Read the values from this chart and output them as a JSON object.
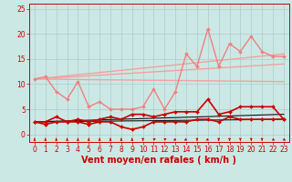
{
  "title": "",
  "xlabel": "Vent moyen/en rafales ( km/h )",
  "bg_color": "#cce8e4",
  "grid_color": "#aacccc",
  "xlim": [
    -0.5,
    23.5
  ],
  "ylim": [
    -1.5,
    26
  ],
  "xticks": [
    0,
    1,
    2,
    3,
    4,
    5,
    6,
    7,
    8,
    9,
    10,
    11,
    12,
    13,
    14,
    15,
    16,
    17,
    18,
    19,
    20,
    21,
    22,
    23
  ],
  "yticks": [
    0,
    5,
    10,
    15,
    20,
    25
  ],
  "series": [
    {
      "name": "rafales_zigzag",
      "x": [
        0,
        1,
        2,
        3,
        4,
        5,
        6,
        7,
        8,
        9,
        10,
        11,
        12,
        13,
        14,
        15,
        16,
        17,
        18,
        19,
        20,
        21,
        22,
        23
      ],
      "y": [
        11.0,
        11.5,
        8.5,
        7.0,
        10.5,
        5.5,
        6.5,
        5.0,
        5.0,
        5.0,
        5.5,
        9.0,
        5.0,
        8.5,
        16.0,
        13.5,
        21.0,
        13.5,
        18.0,
        16.5,
        19.5,
        16.5,
        15.5,
        15.5
      ],
      "color": "#f08080",
      "linewidth": 1.0,
      "marker": "D",
      "markersize": 2.0,
      "zorder": 4
    },
    {
      "name": "trend_top",
      "x": [
        0,
        23
      ],
      "y": [
        11.0,
        16.0
      ],
      "color": "#f4a0a0",
      "linewidth": 1.0,
      "marker": null,
      "zorder": 2
    },
    {
      "name": "trend_mid",
      "x": [
        0,
        23
      ],
      "y": [
        11.0,
        14.0
      ],
      "color": "#f4a0a0",
      "linewidth": 1.0,
      "marker": null,
      "zorder": 2
    },
    {
      "name": "trend_bot",
      "x": [
        0,
        23
      ],
      "y": [
        11.0,
        10.5
      ],
      "color": "#f4a0a0",
      "linewidth": 1.0,
      "marker": null,
      "zorder": 2
    },
    {
      "name": "moyen_upper",
      "x": [
        0,
        1,
        2,
        3,
        4,
        5,
        6,
        7,
        8,
        9,
        10,
        11,
        12,
        13,
        14,
        15,
        16,
        17,
        18,
        19,
        20,
        21,
        22,
        23
      ],
      "y": [
        2.5,
        2.5,
        3.5,
        2.5,
        3.0,
        2.5,
        3.0,
        3.5,
        3.0,
        4.0,
        4.0,
        3.5,
        4.0,
        4.5,
        4.5,
        4.5,
        7.0,
        4.0,
        4.5,
        5.5,
        5.5,
        5.5,
        5.5,
        3.0
      ],
      "color": "#cc0000",
      "linewidth": 1.2,
      "marker": "D",
      "markersize": 2.0,
      "zorder": 5
    },
    {
      "name": "moyen_lower",
      "x": [
        0,
        1,
        2,
        3,
        4,
        5,
        6,
        7,
        8,
        9,
        10,
        11,
        12,
        13,
        14,
        15,
        16,
        17,
        18,
        19,
        20,
        21,
        22,
        23
      ],
      "y": [
        2.5,
        2.0,
        2.5,
        2.5,
        2.5,
        2.0,
        2.5,
        2.5,
        1.5,
        1.0,
        1.5,
        2.5,
        2.5,
        2.5,
        2.5,
        3.0,
        3.0,
        2.5,
        3.5,
        3.0,
        3.0,
        3.0,
        3.0,
        3.0
      ],
      "color": "#cc0000",
      "linewidth": 1.2,
      "marker": "D",
      "markersize": 2.0,
      "zorder": 5
    },
    {
      "name": "trend_dark1",
      "x": [
        0,
        23
      ],
      "y": [
        2.5,
        4.0
      ],
      "color": "#111111",
      "linewidth": 0.8,
      "marker": null,
      "zorder": 3
    },
    {
      "name": "trend_dark2",
      "x": [
        0,
        23
      ],
      "y": [
        2.5,
        3.0
      ],
      "color": "#111111",
      "linewidth": 0.8,
      "marker": null,
      "zorder": 3
    }
  ],
  "wind_arrows": {
    "y": -1.0,
    "color": "#cc0000",
    "x": [
      0,
      1,
      2,
      3,
      4,
      5,
      6,
      7,
      8,
      9,
      10,
      11,
      12,
      13,
      14,
      15,
      16,
      17,
      18,
      19,
      20,
      21,
      22,
      23
    ],
    "directions": [
      180,
      180,
      180,
      180,
      180,
      180,
      180,
      180,
      180,
      180,
      0,
      135,
      135,
      315,
      315,
      0,
      315,
      0,
      0,
      0,
      0,
      0,
      45,
      45
    ]
  },
  "xlabel_color": "#cc0000",
  "xlabel_fontsize": 7,
  "tick_fontsize": 5.5,
  "tick_color": "#cc0000",
  "axis_color": "#cc0000"
}
